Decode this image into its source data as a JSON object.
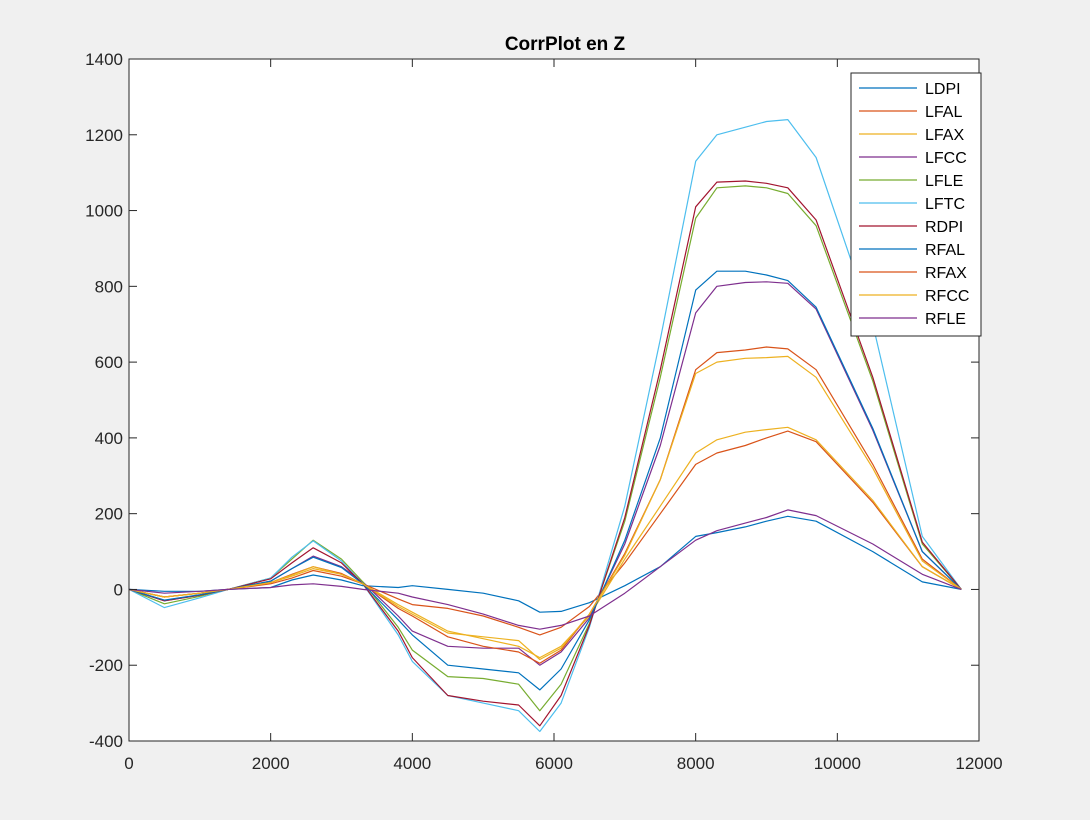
{
  "chart_data": {
    "type": "line",
    "title": "CorrPlot en Z",
    "xlabel": "",
    "ylabel": "",
    "xlim": [
      0,
      12000
    ],
    "ylim": [
      -400,
      1400
    ],
    "xticks": [
      0,
      2000,
      4000,
      6000,
      8000,
      10000,
      12000
    ],
    "yticks": [
      -400,
      -200,
      0,
      200,
      400,
      600,
      800,
      1000,
      1200,
      1400
    ],
    "xtick_labels": [
      "0",
      "2000",
      "4000",
      "6000",
      "8000",
      "10000",
      "12000"
    ],
    "ytick_labels": [
      "-400",
      "-200",
      "0",
      "200",
      "400",
      "600",
      "800",
      "1000",
      "1200",
      "1400"
    ],
    "grid": false,
    "legend_position": "top-right",
    "series": [
      {
        "name": "LDPI",
        "color": "#0072bd",
        "x": [
          0,
          500,
          1000,
          1400,
          2000,
          2300,
          2600,
          3000,
          3300,
          3800,
          4000,
          4500,
          5000,
          5500,
          5800,
          6100,
          6500,
          7000,
          7500,
          8000,
          8300,
          8700,
          9000,
          9300,
          9700,
          10500,
          11200,
          11750
        ],
        "y": [
          0,
          -5,
          -5,
          0,
          5,
          25,
          38,
          25,
          10,
          5,
          10,
          0,
          -10,
          -30,
          -60,
          -58,
          -35,
          10,
          60,
          140,
          150,
          165,
          180,
          193,
          180,
          100,
          20,
          0
        ]
      },
      {
        "name": "LFAL",
        "color": "#d95319",
        "x": [
          0,
          500,
          1000,
          1400,
          2000,
          2300,
          2600,
          3000,
          3300,
          3800,
          4000,
          4500,
          5000,
          5500,
          5800,
          6100,
          6500,
          7000,
          7500,
          8000,
          8300,
          8700,
          9000,
          9300,
          9700,
          10500,
          11200,
          11750
        ],
        "y": [
          0,
          -20,
          -10,
          0,
          15,
          30,
          50,
          35,
          15,
          -25,
          -40,
          -50,
          -70,
          -100,
          -120,
          -100,
          -45,
          70,
          200,
          330,
          360,
          380,
          400,
          418,
          390,
          230,
          60,
          0
        ]
      },
      {
        "name": "LFAX",
        "color": "#edb120",
        "x": [
          0,
          500,
          1000,
          1400,
          2000,
          2300,
          2600,
          3000,
          3300,
          3800,
          4000,
          4500,
          5000,
          5500,
          5800,
          6100,
          6500,
          7000,
          7500,
          8000,
          8300,
          8700,
          9000,
          9300,
          9700,
          10500,
          11200,
          11750
        ],
        "y": [
          0,
          -20,
          -10,
          0,
          18,
          35,
          55,
          40,
          15,
          -40,
          -60,
          -110,
          -130,
          -150,
          -180,
          -150,
          -70,
          80,
          220,
          360,
          395,
          415,
          422,
          428,
          395,
          235,
          60,
          0
        ]
      },
      {
        "name": "LFCC",
        "color": "#7e2f8e",
        "x": [
          0,
          500,
          1000,
          1400,
          2000,
          2300,
          2600,
          3000,
          3300,
          3800,
          4000,
          4500,
          5000,
          5500,
          5800,
          6100,
          6500,
          7000,
          7500,
          8000,
          8300,
          8700,
          9000,
          9300,
          9700,
          10500,
          11200,
          11750
        ],
        "y": [
          0,
          -30,
          -15,
          0,
          22,
          55,
          88,
          60,
          20,
          -70,
          -110,
          -150,
          -155,
          -155,
          -200,
          -165,
          -75,
          120,
          380,
          730,
          800,
          810,
          812,
          808,
          740,
          420,
          100,
          0
        ]
      },
      {
        "name": "LFLE",
        "color": "#77ac30",
        "x": [
          0,
          500,
          1000,
          1400,
          2000,
          2300,
          2600,
          3000,
          3300,
          3800,
          4000,
          4500,
          5000,
          5500,
          5800,
          6100,
          6500,
          7000,
          7500,
          8000,
          8300,
          8700,
          9000,
          9300,
          9700,
          10500,
          11200,
          11750
        ],
        "y": [
          0,
          -38,
          -18,
          0,
          30,
          80,
          130,
          80,
          20,
          -100,
          -160,
          -230,
          -235,
          -250,
          -320,
          -250,
          -90,
          180,
          560,
          980,
          1060,
          1065,
          1060,
          1045,
          960,
          550,
          120,
          0
        ]
      },
      {
        "name": "LFTC",
        "color": "#4dbeee",
        "x": [
          0,
          500,
          1000,
          1400,
          2000,
          2300,
          2600,
          3000,
          3300,
          3800,
          4000,
          4500,
          5000,
          5500,
          5800,
          6100,
          6500,
          7000,
          7500,
          8000,
          8300,
          8700,
          9000,
          9300,
          9700,
          10500,
          11200,
          11750
        ],
        "y": [
          0,
          -48,
          -22,
          0,
          30,
          85,
          128,
          75,
          15,
          -120,
          -190,
          -280,
          -300,
          -320,
          -375,
          -300,
          -100,
          220,
          660,
          1130,
          1200,
          1220,
          1235,
          1240,
          1140,
          700,
          140,
          0
        ]
      },
      {
        "name": "RDPI",
        "color": "#a2142f",
        "x": [
          0,
          500,
          1000,
          1400,
          2000,
          2300,
          2600,
          3000,
          3300,
          3800,
          4000,
          4500,
          5000,
          5500,
          5800,
          6100,
          6500,
          7000,
          7500,
          8000,
          8300,
          8700,
          9000,
          9300,
          9700,
          10500,
          11200,
          11750
        ],
        "y": [
          0,
          -30,
          -15,
          0,
          28,
          70,
          110,
          70,
          15,
          -110,
          -180,
          -280,
          -295,
          -305,
          -360,
          -280,
          -95,
          190,
          580,
          1010,
          1075,
          1078,
          1072,
          1060,
          975,
          560,
          125,
          0
        ]
      },
      {
        "name": "RFAL",
        "color": "#0072bd",
        "x": [
          0,
          500,
          1000,
          1400,
          2000,
          2300,
          2600,
          3000,
          3300,
          3800,
          4000,
          4500,
          5000,
          5500,
          5800,
          6100,
          6500,
          7000,
          7500,
          8000,
          8300,
          8700,
          9000,
          9300,
          9700,
          10500,
          11200,
          11750
        ],
        "y": [
          0,
          -28,
          -14,
          0,
          22,
          55,
          85,
          58,
          15,
          -80,
          -120,
          -200,
          -210,
          -220,
          -265,
          -210,
          -80,
          130,
          400,
          790,
          840,
          840,
          830,
          815,
          745,
          425,
          100,
          0
        ]
      },
      {
        "name": "RFAX",
        "color": "#d95319",
        "x": [
          0,
          500,
          1000,
          1400,
          2000,
          2300,
          2600,
          3000,
          3300,
          3800,
          4000,
          4500,
          5000,
          5500,
          5800,
          6100,
          6500,
          7000,
          7500,
          8000,
          8300,
          8700,
          9000,
          9300,
          9700,
          10500,
          11200,
          11750
        ],
        "y": [
          0,
          -20,
          -10,
          0,
          18,
          40,
          60,
          42,
          15,
          -50,
          -70,
          -125,
          -150,
          -165,
          -195,
          -160,
          -65,
          95,
          290,
          580,
          625,
          632,
          640,
          635,
          580,
          330,
          80,
          0
        ]
      },
      {
        "name": "RFCC",
        "color": "#edb120",
        "x": [
          0,
          500,
          1000,
          1400,
          2000,
          2300,
          2600,
          3000,
          3300,
          3800,
          4000,
          4500,
          5000,
          5500,
          5800,
          6100,
          6500,
          7000,
          7500,
          8000,
          8300,
          8700,
          9000,
          9300,
          9700,
          10500,
          11200,
          11750
        ],
        "y": [
          0,
          -20,
          -10,
          0,
          18,
          38,
          60,
          40,
          15,
          -45,
          -65,
          -115,
          -125,
          -135,
          -185,
          -155,
          -65,
          90,
          290,
          570,
          600,
          610,
          612,
          615,
          560,
          320,
          75,
          0
        ]
      },
      {
        "name": "RFLE",
        "color": "#7e2f8e",
        "x": [
          0,
          500,
          1000,
          1400,
          2000,
          2300,
          2600,
          3000,
          3300,
          3800,
          4000,
          4500,
          5000,
          5500,
          5800,
          6100,
          6500,
          7000,
          7500,
          8000,
          8300,
          8700,
          9000,
          9300,
          9700,
          10500,
          11200,
          11750
        ],
        "y": [
          0,
          -10,
          -5,
          0,
          5,
          12,
          15,
          8,
          0,
          -10,
          -20,
          -40,
          -65,
          -95,
          -105,
          -95,
          -70,
          -10,
          60,
          130,
          155,
          175,
          190,
          210,
          195,
          120,
          40,
          0
        ]
      }
    ]
  }
}
